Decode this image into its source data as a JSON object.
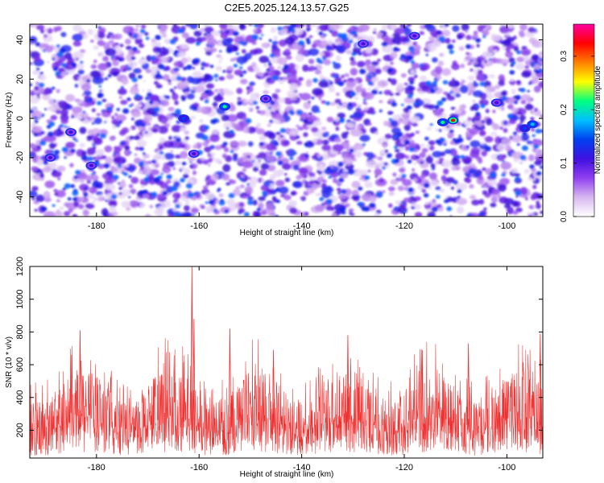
{
  "title": "C2E5.2025.124.13.57.G25",
  "colors": {
    "snr_line": "#f03030",
    "spectrogram_background": "#ffffff",
    "colormap": [
      "#ffffff",
      "#d8b8f0",
      "#9040f0",
      "#4010e0",
      "#0040f0",
      "#00c0ff",
      "#00ff80",
      "#ffff00",
      "#ff8000",
      "#ff0000",
      "#ff00a0"
    ]
  },
  "chart_data": [
    {
      "type": "heatmap",
      "name": "spectrogram",
      "xlabel": "Height of straight line (km)",
      "ylabel": "Frequency (Hz)",
      "xlim": [
        -193,
        -93
      ],
      "ylim": [
        -50,
        48
      ],
      "x_ticks": [
        -180,
        -160,
        -140,
        -120,
        -100
      ],
      "y_ticks": [
        -40,
        -20,
        0,
        20,
        40
      ],
      "colorbar": {
        "label": "Normalized spectral amplitude",
        "range": [
          0.0,
          0.36
        ],
        "ticks": [
          0.0,
          0.1,
          0.2,
          0.3
        ]
      },
      "hotspots": [
        {
          "x": -110.5,
          "y": -1,
          "value": 0.33
        },
        {
          "x": -112.5,
          "y": -2,
          "value": 0.22
        },
        {
          "x": -155,
          "y": 6,
          "value": 0.2
        },
        {
          "x": -163,
          "y": 0,
          "value": 0.16
        },
        {
          "x": -95,
          "y": -3,
          "value": 0.18
        },
        {
          "x": -96.5,
          "y": -5,
          "value": 0.14
        },
        {
          "x": -185,
          "y": -7,
          "value": 0.12
        },
        {
          "x": -189,
          "y": -20,
          "value": 0.12
        },
        {
          "x": -161,
          "y": -18,
          "value": 0.1
        },
        {
          "x": -147,
          "y": 10,
          "value": 0.12
        },
        {
          "x": -181,
          "y": -24,
          "value": 0.1
        },
        {
          "x": -128,
          "y": 38,
          "value": 0.1
        },
        {
          "x": -118,
          "y": 42,
          "value": 0.1
        },
        {
          "x": -102,
          "y": 8,
          "value": 0.1
        }
      ]
    },
    {
      "type": "line",
      "name": "snr",
      "xlabel": "Height of straight line (km)",
      "ylabel": "SNR (10 * v/v)",
      "xlim": [
        -193,
        -93
      ],
      "ylim": [
        30,
        1200
      ],
      "x_ticks": [
        -180,
        -160,
        -140,
        -120,
        -100
      ],
      "y_ticks": [
        200,
        400,
        600,
        800,
        1000,
        1200
      ],
      "peaks": [
        {
          "x": -161.4,
          "y": 1200
        },
        {
          "x": -161.0,
          "y": 880
        },
        {
          "x": -183.2,
          "y": 810
        },
        {
          "x": -154.0,
          "y": 820
        },
        {
          "x": -145.5,
          "y": 690
        },
        {
          "x": -131.0,
          "y": 780
        },
        {
          "x": -116.5,
          "y": 690
        },
        {
          "x": -107.5,
          "y": 730
        },
        {
          "x": -93.5,
          "y": 790
        }
      ],
      "baseline_mean": 290
    }
  ]
}
